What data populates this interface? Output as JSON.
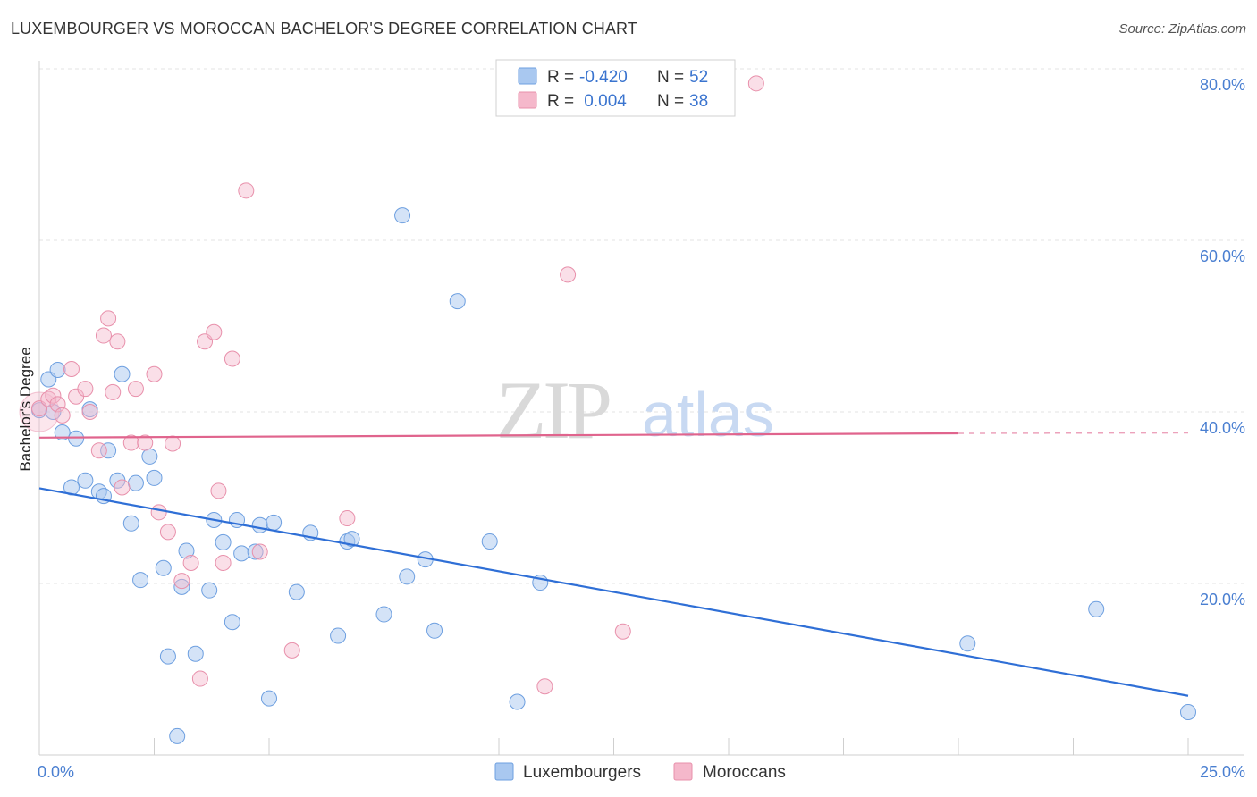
{
  "header": {
    "title": "LUXEMBOURGER VS MOROCCAN BACHELOR'S DEGREE CORRELATION CHART",
    "source": "Source: ZipAtlas.com"
  },
  "watermark": {
    "zip": "ZIP",
    "atlas": "atlas"
  },
  "legend_top": {
    "rows": [
      {
        "r_label": "R = ",
        "r_value": "-0.420",
        "n_label": "N = ",
        "n_value": "52",
        "color": "#a9c8f0"
      },
      {
        "r_label": "R = ",
        "r_value": " 0.004",
        "n_label": "N = ",
        "n_value": "38",
        "color": "#f5b8cb"
      }
    ]
  },
  "legend_bottom": {
    "items": [
      {
        "label": "Luxembourgers",
        "color": "#a9c8f0"
      },
      {
        "label": "Moroccans",
        "color": "#f5b8cb"
      }
    ]
  },
  "chart_data": {
    "type": "scatter",
    "ylabel": "Bachelor's Degree",
    "xlim": [
      0,
      25
    ],
    "ylim": [
      0,
      82
    ],
    "x_tick_labels": [
      {
        "value": 0,
        "label": "0.0%"
      },
      {
        "value": 25,
        "label": "25.0%"
      }
    ],
    "y_tick_labels": [
      {
        "value": 20,
        "label": "20.0%"
      },
      {
        "value": 40,
        "label": "40.0%"
      },
      {
        "value": 60,
        "label": "60.0%"
      },
      {
        "value": 80,
        "label": "80.0%"
      }
    ],
    "x_minor_ticks": [
      2.5,
      5,
      7.5,
      10,
      12.5,
      15,
      17.5,
      20,
      22.5,
      25
    ],
    "grid": true,
    "colors": {
      "luxembourgers_fill": "#a9c8f0",
      "luxembourgers_stroke": "#6d9fe0",
      "luxembourgers_line": "#2f6fd6",
      "moroccans_fill": "#f5b8cb",
      "moroccans_stroke": "#e890ab",
      "moroccans_line": "#e0648d"
    },
    "series": [
      {
        "name": "Luxembourgers",
        "trend": {
          "x": [
            0,
            25
          ],
          "y": [
            31.1,
            6.9
          ]
        },
        "points": [
          [
            0.0,
            40.2
          ],
          [
            0.2,
            43.8
          ],
          [
            0.3,
            40.0
          ],
          [
            0.4,
            44.9
          ],
          [
            0.5,
            37.6
          ],
          [
            0.7,
            31.2
          ],
          [
            0.8,
            36.9
          ],
          [
            1.0,
            32.0
          ],
          [
            1.1,
            40.3
          ],
          [
            1.3,
            30.7
          ],
          [
            1.4,
            30.2
          ],
          [
            1.5,
            35.5
          ],
          [
            1.7,
            32.0
          ],
          [
            1.8,
            44.4
          ],
          [
            2.0,
            27.0
          ],
          [
            2.1,
            31.7
          ],
          [
            2.2,
            20.4
          ],
          [
            2.4,
            34.8
          ],
          [
            2.5,
            32.3
          ],
          [
            2.7,
            21.8
          ],
          [
            2.8,
            11.5
          ],
          [
            3.0,
            2.2
          ],
          [
            3.1,
            19.6
          ],
          [
            3.2,
            23.8
          ],
          [
            3.4,
            11.8
          ],
          [
            3.7,
            19.2
          ],
          [
            3.8,
            27.4
          ],
          [
            4.0,
            24.8
          ],
          [
            4.2,
            15.5
          ],
          [
            4.3,
            27.4
          ],
          [
            4.4,
            23.5
          ],
          [
            4.7,
            23.7
          ],
          [
            4.8,
            26.8
          ],
          [
            5.0,
            6.6
          ],
          [
            5.1,
            27.1
          ],
          [
            5.6,
            19.0
          ],
          [
            5.9,
            25.9
          ],
          [
            6.5,
            13.9
          ],
          [
            6.7,
            24.9
          ],
          [
            6.8,
            25.2
          ],
          [
            7.5,
            16.4
          ],
          [
            7.9,
            62.9
          ],
          [
            8.0,
            20.8
          ],
          [
            8.4,
            22.8
          ],
          [
            8.6,
            14.5
          ],
          [
            9.1,
            52.9
          ],
          [
            9.8,
            24.9
          ],
          [
            10.4,
            6.2
          ],
          [
            10.9,
            20.1
          ],
          [
            20.2,
            13.0
          ],
          [
            23.0,
            17.0
          ],
          [
            25.0,
            5.0
          ]
        ]
      },
      {
        "name": "Moroccans",
        "trend": {
          "x": [
            0,
            20
          ],
          "y": [
            37.0,
            37.5
          ]
        },
        "points": [
          [
            0.0,
            40.4
          ],
          [
            0.2,
            41.5
          ],
          [
            0.3,
            41.9
          ],
          [
            0.4,
            40.9
          ],
          [
            0.5,
            39.6
          ],
          [
            0.7,
            45.0
          ],
          [
            0.8,
            41.8
          ],
          [
            1.0,
            42.7
          ],
          [
            1.1,
            40.0
          ],
          [
            1.3,
            35.5
          ],
          [
            1.4,
            48.9
          ],
          [
            1.5,
            50.9
          ],
          [
            1.6,
            42.3
          ],
          [
            1.7,
            48.2
          ],
          [
            1.8,
            31.2
          ],
          [
            2.0,
            36.4
          ],
          [
            2.1,
            42.7
          ],
          [
            2.3,
            36.4
          ],
          [
            2.5,
            44.4
          ],
          [
            2.6,
            28.3
          ],
          [
            2.8,
            26.0
          ],
          [
            2.9,
            36.3
          ],
          [
            3.1,
            20.3
          ],
          [
            3.3,
            22.4
          ],
          [
            3.5,
            8.9
          ],
          [
            3.6,
            48.2
          ],
          [
            3.8,
            49.3
          ],
          [
            3.9,
            30.8
          ],
          [
            4.0,
            22.4
          ],
          [
            4.2,
            46.2
          ],
          [
            4.5,
            65.8
          ],
          [
            4.8,
            23.7
          ],
          [
            5.5,
            12.2
          ],
          [
            6.7,
            27.6
          ],
          [
            11.0,
            8.0
          ],
          [
            11.5,
            56.0
          ],
          [
            12.7,
            14.4
          ],
          [
            15.6,
            78.3
          ]
        ]
      }
    ]
  }
}
